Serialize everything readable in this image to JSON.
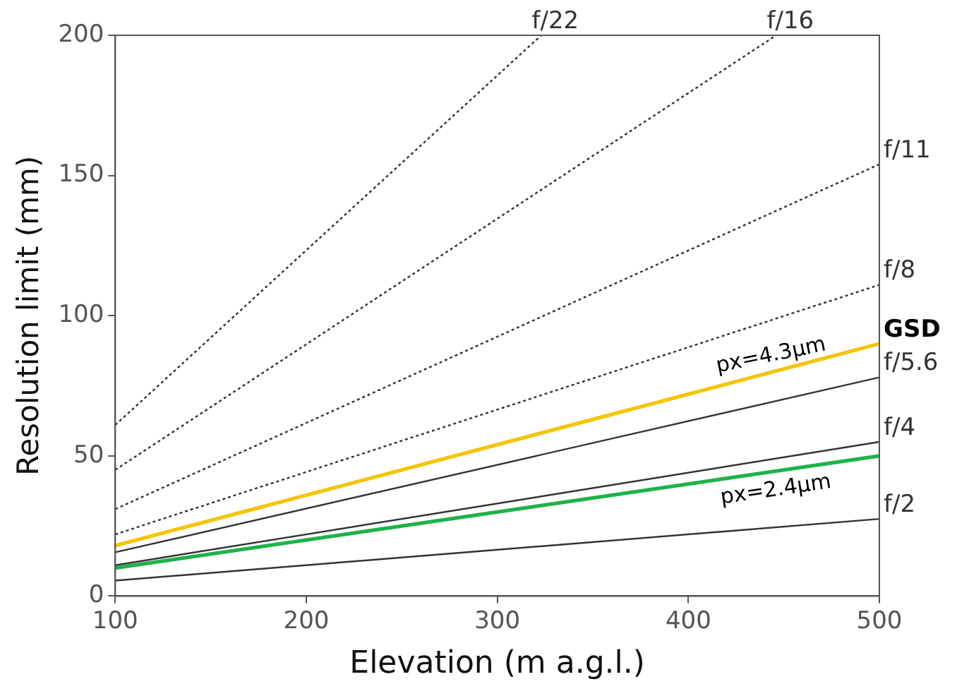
{
  "chart_data": {
    "type": "line",
    "xlabel": "Elevation (m a.g.l.)",
    "ylabel": "Resolution limit (mm)",
    "xlim": [
      100,
      500
    ],
    "xticks": [
      100,
      200,
      300,
      400,
      500
    ],
    "ylim": [
      0,
      200
    ],
    "yticks": [
      0,
      50,
      100,
      150,
      200
    ],
    "grid": false,
    "legend": false,
    "marker": "none",
    "series": [
      {
        "name": "f/22",
        "color": "#333333",
        "x": [
          100,
          323
        ],
        "values": [
          61,
          200
        ],
        "line_style": "dotted"
      },
      {
        "name": "f/16",
        "color": "#333333",
        "x": [
          100,
          446
        ],
        "values": [
          45,
          200
        ],
        "line_style": "dotted"
      },
      {
        "name": "f/11",
        "color": "#333333",
        "x": [
          100,
          500
        ],
        "values": [
          31,
          154
        ],
        "line_style": "dotted"
      },
      {
        "name": "f/8",
        "color": "#333333",
        "x": [
          100,
          500
        ],
        "values": [
          22,
          111
        ],
        "line_style": "dotted"
      },
      {
        "name": "GSD",
        "color": "#f5c400",
        "x": [
          100,
          500
        ],
        "values": [
          18,
          90
        ],
        "line_style": "solid"
      },
      {
        "name": "f/5.6",
        "color": "#333333",
        "x": [
          100,
          500
        ],
        "values": [
          15.6,
          78
        ],
        "line_style": "solid"
      },
      {
        "name": "f/4",
        "color": "#333333",
        "x": [
          100,
          500
        ],
        "values": [
          11,
          55
        ],
        "line_style": "solid"
      },
      {
        "name": "px=2.4µm",
        "color": "#1db34a",
        "x": [
          100,
          500
        ],
        "values": [
          10,
          50
        ],
        "line_style": "solid"
      },
      {
        "name": "f/2",
        "color": "#333333",
        "x": [
          100,
          500
        ],
        "values": [
          5.5,
          27.5
        ],
        "line_style": "solid"
      }
    ],
    "annotations": [
      {
        "text": "px=4.3µm",
        "x": 445,
        "y": 80
      }
    ]
  }
}
